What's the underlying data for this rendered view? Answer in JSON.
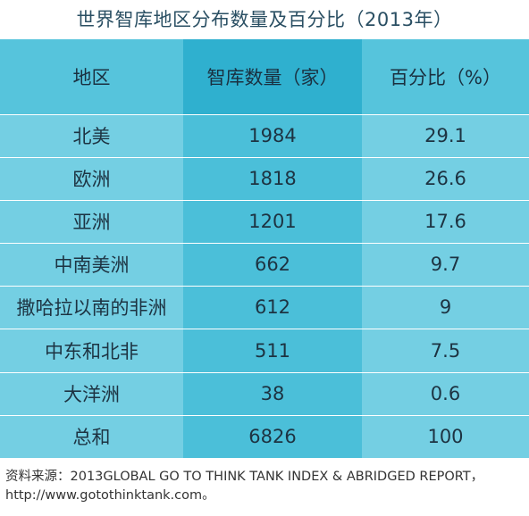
{
  "title": "世界智库地区分布数量及百分比（2013年）",
  "table": {
    "headers": [
      "地区",
      "智库数量（家）",
      "百分比（%）"
    ],
    "rows": [
      [
        "北美",
        "1984",
        "29.1"
      ],
      [
        "欧洲",
        "1818",
        "26.6"
      ],
      [
        "亚洲",
        "1201",
        "17.6"
      ],
      [
        "中南美洲",
        "662",
        "9.7"
      ],
      [
        "撒哈拉以南的非洲",
        "612",
        "9"
      ],
      [
        "中东和北非",
        "511",
        "7.5"
      ],
      [
        "大洋洲",
        "38",
        "0.6"
      ],
      [
        "总和",
        "6826",
        "100"
      ]
    ]
  },
  "source": {
    "line1": "资料来源：2013GLOBAL GO TO THINK TANK INDEX & ABRIDGED REPORT，",
    "line2": "http://www.gotothinktank.com。"
  }
}
